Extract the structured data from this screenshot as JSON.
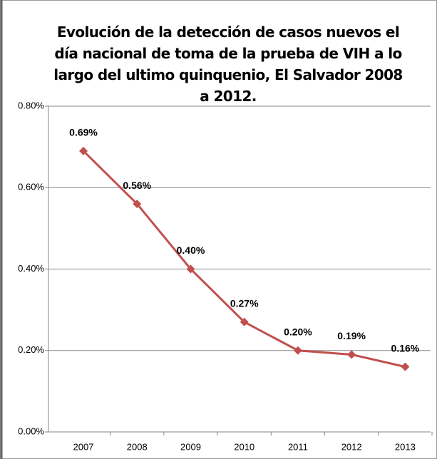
{
  "chart_data": {
    "type": "line",
    "title": "Evolución de la detección de casos nuevos el día nacional de toma de la prueba de VIH a lo largo del ultimo quinquenio, El Salvador 2008 a 2012.",
    "categories": [
      "2007",
      "2008",
      "2009",
      "2010",
      "2011",
      "2012",
      "2013"
    ],
    "series": [
      {
        "color": "#c0504d",
        "values": [
          0.69,
          0.56,
          0.4,
          0.27,
          0.2,
          0.19,
          0.16
        ],
        "value_labels": [
          "0.69%",
          "0.56%",
          "0.40%",
          "0.27%",
          "0.20%",
          "0.19%",
          "0.16%"
        ]
      }
    ],
    "ylim": [
      0,
      0.8
    ],
    "yticks": [
      {
        "value": 0,
        "label": "0.00%"
      },
      {
        "value": 0.2,
        "label": "0.20%"
      },
      {
        "value": 0.4,
        "label": "0.40%"
      },
      {
        "value": 0.6,
        "label": "0.60%"
      },
      {
        "value": 0.8,
        "label": "0.80%"
      }
    ],
    "grid": true
  }
}
